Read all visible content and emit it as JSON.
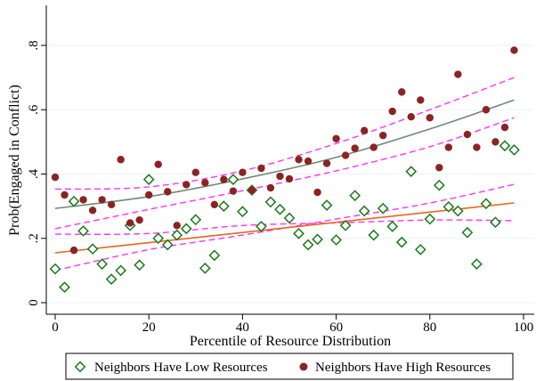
{
  "chart_data": {
    "type": "scatter",
    "xlabel": "Percentile of Resource Distribution",
    "ylabel": "Prob(Engaged in Conflict)",
    "xlim": [
      0,
      100
    ],
    "ylim": [
      0,
      0.8
    ],
    "x_ticks": [
      0,
      20,
      40,
      60,
      80,
      100
    ],
    "x_tick_labels": [
      "0",
      "20",
      "40",
      "60",
      "80",
      "100"
    ],
    "y_ticks": [
      0,
      0.2,
      0.4,
      0.6,
      0.8
    ],
    "y_tick_labels": [
      "0",
      ".2",
      ".4",
      ".6",
      ".8"
    ],
    "grid": true,
    "legend_position": "bottom",
    "series": [
      {
        "name": "Neighbors Have Low Resources",
        "marker": "hollow-diamond",
        "color": "#1a7a1a",
        "x": [
          0,
          2,
          4,
          6,
          8,
          10,
          12,
          14,
          16,
          18,
          20,
          22,
          24,
          26,
          28,
          30,
          32,
          34,
          36,
          38,
          40,
          42,
          44,
          46,
          48,
          50,
          52,
          54,
          56,
          58,
          60,
          62,
          64,
          66,
          68,
          70,
          72,
          74,
          76,
          78,
          80,
          82,
          84,
          86,
          88,
          90,
          92,
          94,
          96,
          98
        ],
        "y": [
          0.105,
          0.048,
          0.315,
          0.223,
          0.167,
          0.12,
          0.073,
          0.1,
          0.24,
          0.117,
          0.383,
          0.2,
          0.18,
          0.21,
          0.23,
          0.258,
          0.107,
          0.147,
          0.3,
          0.383,
          0.283,
          0.35,
          0.237,
          0.313,
          0.29,
          0.263,
          0.215,
          0.18,
          0.197,
          0.303,
          0.195,
          0.24,
          0.333,
          0.285,
          0.21,
          0.293,
          0.237,
          0.188,
          0.408,
          0.165,
          0.26,
          0.365,
          0.298,
          0.285,
          0.218,
          0.12,
          0.308,
          0.25,
          0.488,
          0.475
        ]
      },
      {
        "name": "Neighbors Have High Resources",
        "marker": "filled-circle",
        "color": "#8b2323",
        "x": [
          0,
          2,
          4,
          6,
          8,
          10,
          12,
          14,
          16,
          18,
          20,
          22,
          24,
          26,
          28,
          30,
          32,
          34,
          36,
          38,
          40,
          42,
          44,
          46,
          48,
          50,
          52,
          54,
          56,
          58,
          60,
          62,
          64,
          66,
          68,
          70,
          72,
          74,
          76,
          78,
          80,
          82,
          84,
          86,
          88,
          90,
          92,
          94,
          96,
          98
        ],
        "y": [
          0.39,
          0.335,
          0.163,
          0.32,
          0.287,
          0.32,
          0.305,
          0.445,
          0.248,
          0.257,
          0.335,
          0.43,
          0.345,
          0.24,
          0.367,
          0.405,
          0.373,
          0.305,
          0.383,
          0.347,
          0.405,
          0.35,
          0.418,
          0.357,
          0.393,
          0.385,
          0.445,
          0.44,
          0.343,
          0.433,
          0.51,
          0.458,
          0.48,
          0.535,
          0.483,
          0.52,
          0.595,
          0.655,
          0.578,
          0.63,
          0.575,
          0.42,
          0.483,
          0.71,
          0.523,
          0.483,
          0.6,
          0.5,
          0.545,
          0.785
        ]
      }
    ],
    "fit_lines": [
      {
        "color": "#e8641e",
        "x": [
          0,
          98
        ],
        "y": [
          0.155,
          0.31
        ]
      },
      {
        "color": "#708878",
        "x": [
          0,
          20,
          40,
          60,
          80,
          98
        ],
        "y": [
          0.293,
          0.33,
          0.385,
          0.452,
          0.54,
          0.63
        ]
      }
    ],
    "ci_lines": [
      {
        "color": "#ff33ff",
        "x": [
          0,
          20,
          40,
          60,
          80,
          98
        ],
        "y": [
          0.213,
          0.215,
          0.24,
          0.248,
          0.257,
          0.255
        ]
      },
      {
        "color": "#ff33ff",
        "x": [
          0,
          20,
          40,
          60,
          80,
          98
        ],
        "y": [
          0.1,
          0.165,
          0.21,
          0.26,
          0.31,
          0.368
        ]
      },
      {
        "color": "#ff33ff",
        "x": [
          0,
          20,
          40,
          60,
          80,
          98
        ],
        "y": [
          0.353,
          0.36,
          0.41,
          0.495,
          0.6,
          0.7
        ]
      },
      {
        "color": "#ff33ff",
        "x": [
          0,
          20,
          40,
          60,
          80,
          98
        ],
        "y": [
          0.23,
          0.29,
          0.348,
          0.41,
          0.485,
          0.575
        ]
      }
    ]
  }
}
